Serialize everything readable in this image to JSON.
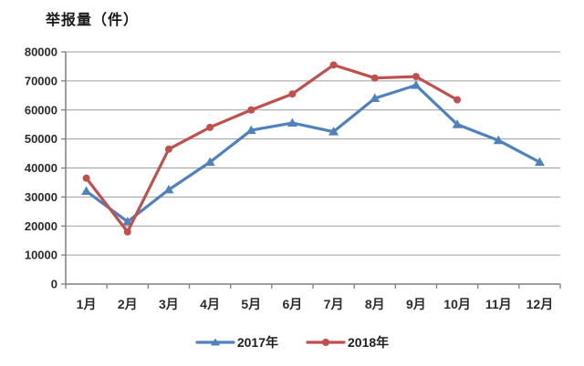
{
  "chart_title": "举报量（件）",
  "chart_data": {
    "type": "line",
    "title": "举报量（件）",
    "categories": [
      "1月",
      "2月",
      "3月",
      "4月",
      "5月",
      "6月",
      "7月",
      "8月",
      "9月",
      "10月",
      "11月",
      "12月"
    ],
    "series": [
      {
        "name": "2017年",
        "color": "#4f81bd",
        "marker": "triangle",
        "values": [
          32000,
          21500,
          32500,
          42000,
          53000,
          55500,
          52500,
          64000,
          68500,
          55000,
          49500,
          42000
        ]
      },
      {
        "name": "2018年",
        "color": "#c0504d",
        "marker": "circle",
        "values": [
          36500,
          18000,
          46500,
          54000,
          60000,
          65500,
          75500,
          71000,
          71500,
          63500,
          null,
          null
        ]
      }
    ],
    "xlabel": "",
    "ylabel": "举报量（件）",
    "ylim": [
      0,
      80000
    ],
    "yticks": [
      0,
      10000,
      20000,
      30000,
      40000,
      50000,
      60000,
      70000,
      80000
    ],
    "grid": true,
    "legend_position": "bottom",
    "axis_color": "#7f7f7f",
    "grid_color": "#9d9d9d",
    "tick_label_color": "#2b2b2b"
  }
}
